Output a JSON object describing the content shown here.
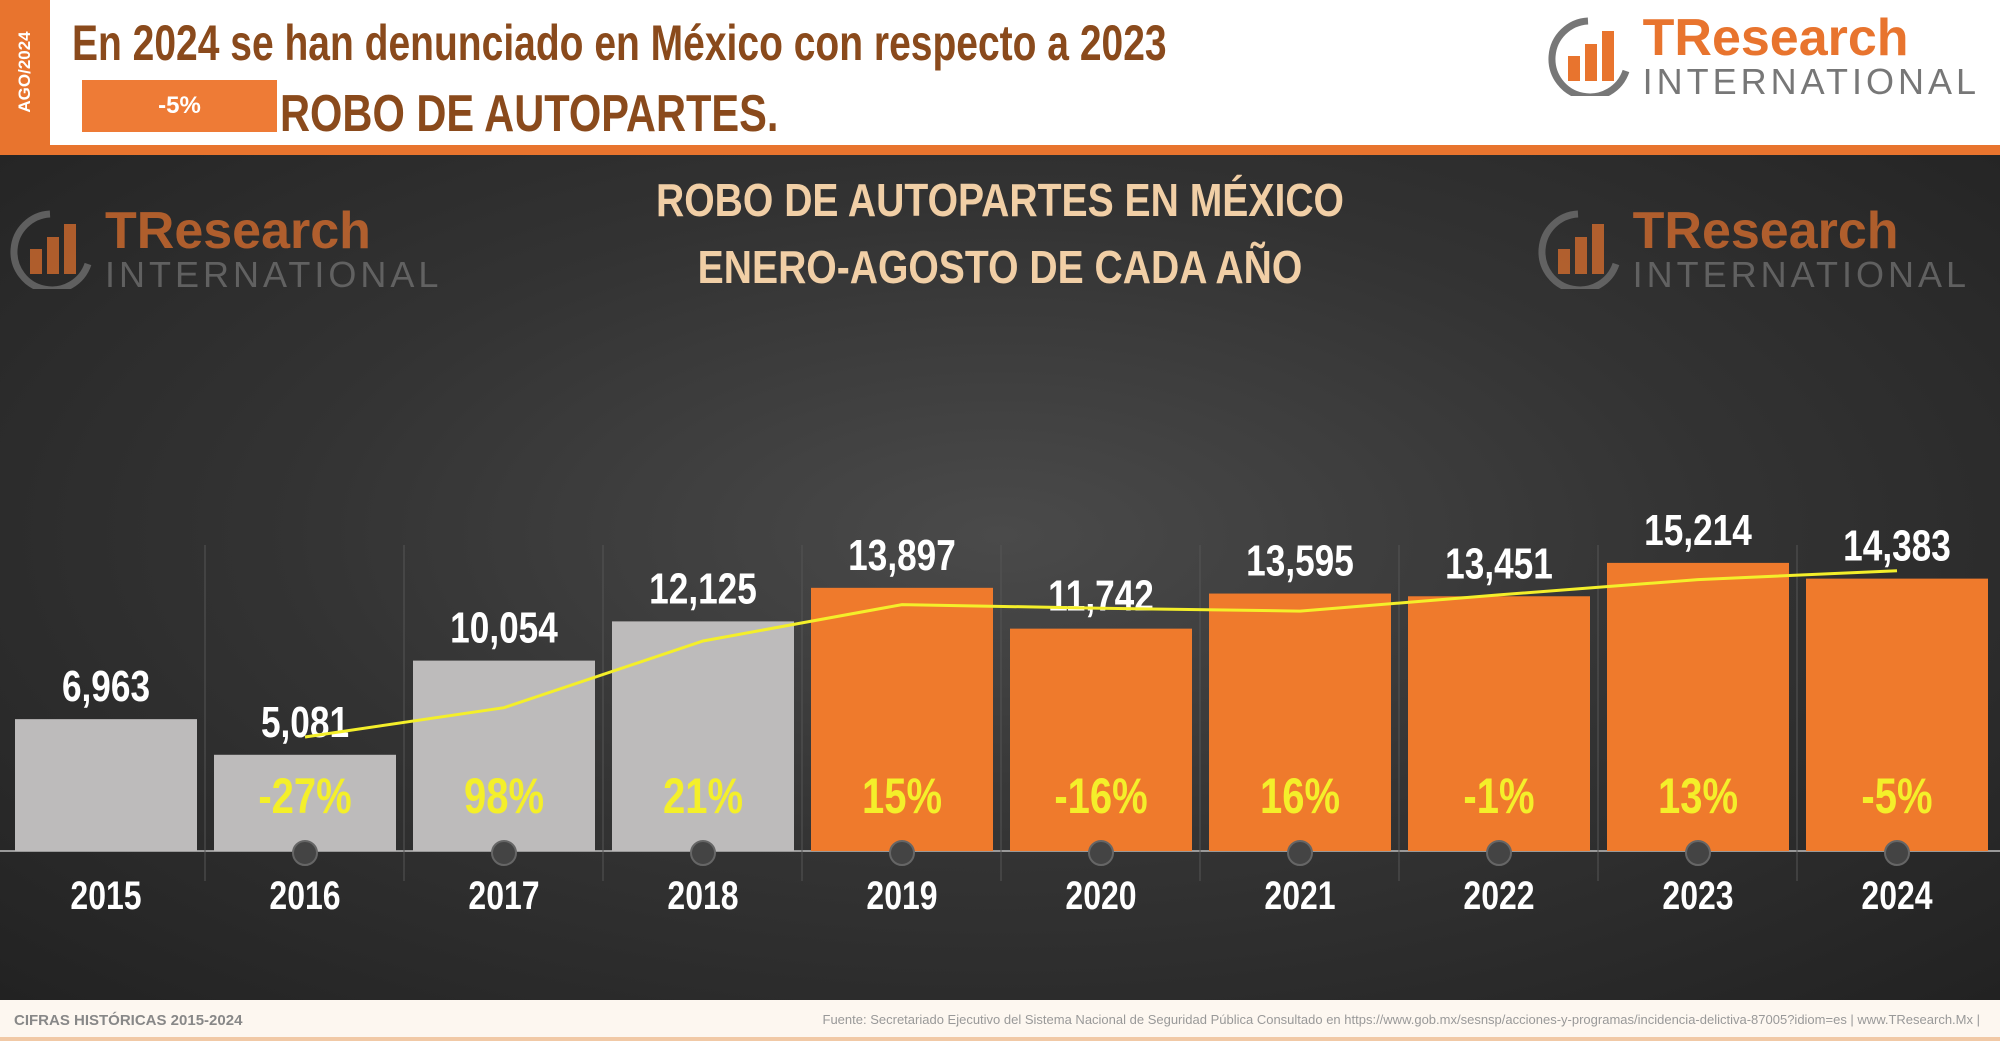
{
  "header": {
    "period_tag": "AGO/2024",
    "headline": "En 2024 se han denunciado en México con respecto a 2023",
    "change_badge": "-5%",
    "crime": "ROBO DE AUTOPARTES.",
    "logo_line1": "TResearch",
    "logo_line2": "INTERNATIONAL"
  },
  "footer": {
    "left": "CIFRAS HISTÓRICAS 2015-2024",
    "source": "Fuente: Secretariado Ejecutivo del Sistema Nacional de Seguridad Pública  Consultado en https://www.gob.mx/sesnsp/acciones-y-programas/incidencia-delictiva-87005?idiom=es  | www.TResearch.Mx |"
  },
  "colors": {
    "orange": "#ef7a2c",
    "gray": "#bdbbbb",
    "yellow": "#f4ef2a"
  },
  "chart_data": {
    "type": "bar",
    "title": "ROBO DE AUTOPARTES EN MÉXICO",
    "subtitle": "ENERO-AGOSTO DE CADA AÑO",
    "categories": [
      "2015",
      "2016",
      "2017",
      "2018",
      "2019",
      "2020",
      "2021",
      "2022",
      "2023",
      "2024"
    ],
    "values": [
      6963,
      5081,
      10054,
      12125,
      13897,
      11742,
      13595,
      13451,
      15214,
      14383
    ],
    "value_labels": [
      "6,963",
      "5,081",
      "10,054",
      "12,125",
      "13,897",
      "11,742",
      "13,595",
      "13,451",
      "15,214",
      "14,383"
    ],
    "pct_change": [
      "",
      "-27%",
      "98%",
      "21%",
      "15%",
      "-16%",
      "16%",
      "-1%",
      "13%",
      "-5%"
    ],
    "highlight_from": "2019",
    "trendline": "2-year moving average",
    "ylim": [
      0,
      16000
    ],
    "grid": false
  }
}
